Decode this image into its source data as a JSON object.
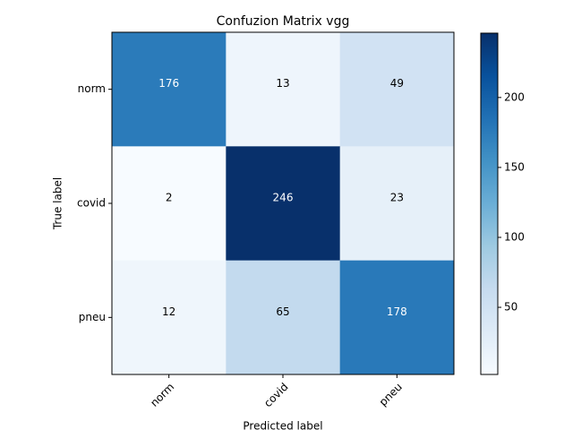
{
  "chart_data": {
    "type": "heatmap",
    "title": "Confuzion Matrix vgg",
    "xlabel": "Predicted label",
    "ylabel": "True label",
    "x_categories": [
      "norm",
      "covid",
      "pneu"
    ],
    "y_categories": [
      "norm",
      "covid",
      "pneu"
    ],
    "values": [
      [
        176,
        13,
        49
      ],
      [
        2,
        246,
        23
      ],
      [
        12,
        65,
        178
      ]
    ],
    "colormap": "Blues",
    "clim": [
      2,
      246
    ],
    "colorbar_ticks": [
      50,
      100,
      150,
      200
    ]
  }
}
